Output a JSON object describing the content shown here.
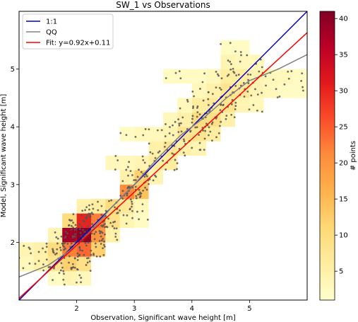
{
  "chart_data": {
    "type": "heatmap",
    "title": "SW_1 vs Observations",
    "xlabel": "Observation, Significant wave height [m]",
    "ylabel": "Model, Significant wave height [m]",
    "xlim": [
      1.0,
      6.0
    ],
    "ylim": [
      1.0,
      6.0
    ],
    "xticks": [
      "2",
      "3",
      "4",
      "5"
    ],
    "yticks": [
      "2",
      "3",
      "4",
      "5"
    ],
    "grid": false,
    "legend_position": "top-left",
    "colorbar": {
      "label": "# points",
      "range": [
        1,
        41
      ],
      "ticks": [
        "5",
        "10",
        "15",
        "20",
        "25",
        "30",
        "35",
        "40"
      ],
      "colormap": "YlOrRd"
    },
    "bin_size": 0.25,
    "bins": [
      {
        "x": 1.0,
        "y": 1.5,
        "count": 3
      },
      {
        "x": 1.0,
        "y": 1.75,
        "count": 4
      },
      {
        "x": 1.25,
        "y": 1.5,
        "count": 5
      },
      {
        "x": 1.25,
        "y": 1.75,
        "count": 5
      },
      {
        "x": 1.5,
        "y": 1.5,
        "count": 8
      },
      {
        "x": 1.5,
        "y": 1.75,
        "count": 10
      },
      {
        "x": 1.5,
        "y": 2.0,
        "count": 4
      },
      {
        "x": 1.5,
        "y": 1.25,
        "count": 2
      },
      {
        "x": 1.75,
        "y": 1.25,
        "count": 4
      },
      {
        "x": 1.75,
        "y": 1.5,
        "count": 12
      },
      {
        "x": 1.75,
        "y": 1.75,
        "count": 22
      },
      {
        "x": 1.75,
        "y": 2.0,
        "count": 38
      },
      {
        "x": 1.75,
        "y": 2.25,
        "count": 10
      },
      {
        "x": 2.0,
        "y": 1.25,
        "count": 3
      },
      {
        "x": 2.0,
        "y": 1.5,
        "count": 9
      },
      {
        "x": 2.0,
        "y": 1.75,
        "count": 24
      },
      {
        "x": 2.0,
        "y": 2.0,
        "count": 40
      },
      {
        "x": 2.0,
        "y": 2.25,
        "count": 30
      },
      {
        "x": 2.0,
        "y": 2.5,
        "count": 5
      },
      {
        "x": 2.25,
        "y": 1.75,
        "count": 12
      },
      {
        "x": 2.25,
        "y": 2.0,
        "count": 20
      },
      {
        "x": 2.25,
        "y": 2.25,
        "count": 22
      },
      {
        "x": 2.25,
        "y": 2.5,
        "count": 6
      },
      {
        "x": 2.5,
        "y": 2.0,
        "count": 5
      },
      {
        "x": 2.5,
        "y": 2.25,
        "count": 9
      },
      {
        "x": 2.5,
        "y": 2.5,
        "count": 10
      },
      {
        "x": 2.75,
        "y": 2.25,
        "count": 4
      },
      {
        "x": 2.75,
        "y": 2.5,
        "count": 7
      },
      {
        "x": 2.75,
        "y": 2.75,
        "count": 21
      },
      {
        "x": 3.0,
        "y": 2.25,
        "count": 2
      },
      {
        "x": 3.0,
        "y": 2.5,
        "count": 3
      },
      {
        "x": 3.0,
        "y": 2.75,
        "count": 14
      },
      {
        "x": 3.0,
        "y": 3.0,
        "count": 12
      },
      {
        "x": 3.0,
        "y": 3.25,
        "count": 4
      },
      {
        "x": 2.5,
        "y": 3.25,
        "count": 3
      },
      {
        "x": 2.75,
        "y": 3.25,
        "count": 3
      },
      {
        "x": 2.75,
        "y": 3.0,
        "count": 5
      },
      {
        "x": 2.75,
        "y": 3.75,
        "count": 2
      },
      {
        "x": 3.0,
        "y": 3.75,
        "count": 3
      },
      {
        "x": 3.25,
        "y": 3.0,
        "count": 4
      },
      {
        "x": 3.25,
        "y": 3.25,
        "count": 6
      },
      {
        "x": 3.25,
        "y": 3.5,
        "count": 5
      },
      {
        "x": 3.25,
        "y": 3.75,
        "count": 3
      },
      {
        "x": 3.5,
        "y": 3.25,
        "count": 6
      },
      {
        "x": 3.5,
        "y": 3.5,
        "count": 8
      },
      {
        "x": 3.5,
        "y": 3.75,
        "count": 4
      },
      {
        "x": 3.5,
        "y": 4.0,
        "count": 3
      },
      {
        "x": 3.75,
        "y": 3.5,
        "count": 5
      },
      {
        "x": 3.75,
        "y": 3.75,
        "count": 8
      },
      {
        "x": 3.75,
        "y": 4.0,
        "count": 5
      },
      {
        "x": 3.75,
        "y": 4.25,
        "count": 3
      },
      {
        "x": 4.0,
        "y": 3.5,
        "count": 4
      },
      {
        "x": 4.0,
        "y": 3.75,
        "count": 8
      },
      {
        "x": 4.0,
        "y": 4.0,
        "count": 10
      },
      {
        "x": 4.0,
        "y": 4.25,
        "count": 6
      },
      {
        "x": 4.0,
        "y": 4.5,
        "count": 3
      },
      {
        "x": 4.25,
        "y": 3.75,
        "count": 6
      },
      {
        "x": 4.25,
        "y": 4.0,
        "count": 9
      },
      {
        "x": 4.25,
        "y": 4.25,
        "count": 7
      },
      {
        "x": 4.25,
        "y": 4.5,
        "count": 5
      },
      {
        "x": 4.25,
        "y": 4.75,
        "count": 3
      },
      {
        "x": 4.5,
        "y": 4.0,
        "count": 5
      },
      {
        "x": 4.5,
        "y": 4.25,
        "count": 8
      },
      {
        "x": 4.5,
        "y": 4.5,
        "count": 8
      },
      {
        "x": 4.5,
        "y": 4.75,
        "count": 6
      },
      {
        "x": 4.5,
        "y": 5.0,
        "count": 4
      },
      {
        "x": 4.75,
        "y": 4.25,
        "count": 4
      },
      {
        "x": 4.75,
        "y": 4.5,
        "count": 7
      },
      {
        "x": 4.75,
        "y": 4.75,
        "count": 6
      },
      {
        "x": 4.75,
        "y": 5.0,
        "count": 3
      },
      {
        "x": 5.0,
        "y": 4.25,
        "count": 3
      },
      {
        "x": 5.0,
        "y": 4.5,
        "count": 4
      },
      {
        "x": 5.0,
        "y": 4.75,
        "count": 4
      },
      {
        "x": 5.0,
        "y": 5.0,
        "count": 3
      },
      {
        "x": 5.25,
        "y": 4.5,
        "count": 3
      },
      {
        "x": 5.25,
        "y": 4.75,
        "count": 3
      },
      {
        "x": 5.5,
        "y": 4.5,
        "count": 2
      },
      {
        "x": 5.5,
        "y": 4.75,
        "count": 3
      },
      {
        "x": 5.75,
        "y": 4.5,
        "count": 2
      },
      {
        "x": 5.75,
        "y": 4.75,
        "count": 2
      },
      {
        "x": 3.5,
        "y": 4.75,
        "count": 2
      },
      {
        "x": 3.75,
        "y": 4.75,
        "count": 2
      },
      {
        "x": 4.0,
        "y": 4.75,
        "count": 2
      },
      {
        "x": 4.5,
        "y": 5.25,
        "count": 2
      },
      {
        "x": 4.75,
        "y": 5.25,
        "count": 2
      }
    ],
    "series": [
      {
        "name": "1:1",
        "kind": "line",
        "color": "#0000cc",
        "x": [
          1.0,
          6.0
        ],
        "y": [
          1.0,
          6.0
        ]
      },
      {
        "name": "QQ",
        "kind": "line",
        "color": "#808080",
        "x": [
          1.0,
          1.5,
          1.8,
          2.0,
          2.3,
          2.6,
          3.0,
          3.4,
          3.8,
          4.2,
          4.6,
          5.0,
          5.5,
          6.0
        ],
        "y": [
          1.4,
          1.6,
          1.8,
          1.95,
          2.25,
          2.6,
          3.0,
          3.45,
          3.85,
          4.15,
          4.5,
          4.8,
          5.0,
          5.25
        ]
      },
      {
        "name": "Fit: y=0.92x+0.11",
        "kind": "line",
        "color": "#ff0000",
        "x": [
          1.0,
          6.0
        ],
        "y": [
          1.03,
          5.63
        ]
      }
    ]
  }
}
